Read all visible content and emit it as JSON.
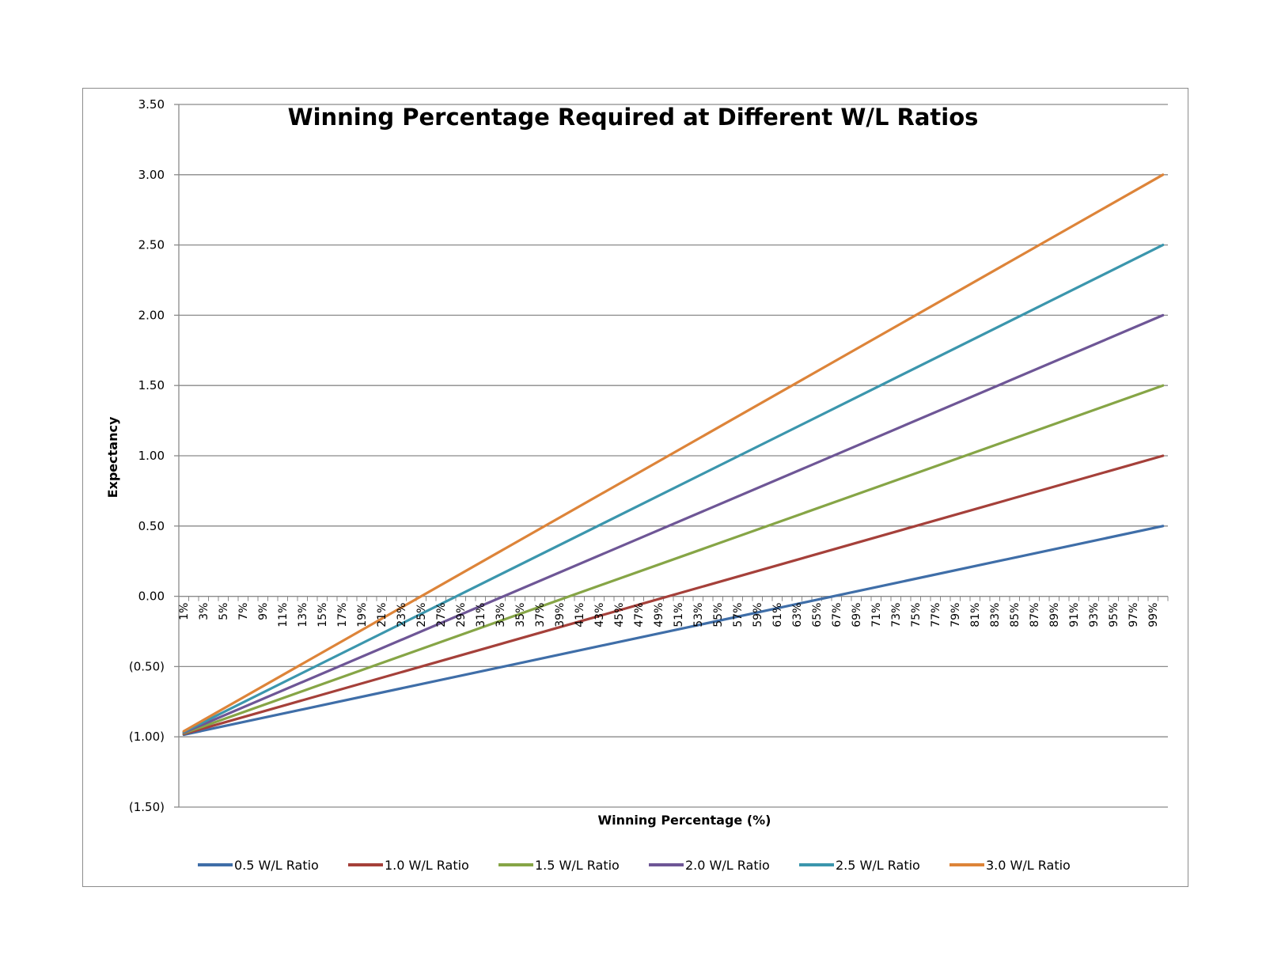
{
  "chart_data": {
    "type": "line",
    "title": "Winning Percentage Required at Different W/L Ratios",
    "xlabel": "Winning Percentage (%)",
    "ylabel": "Expectancy",
    "ylim": [
      -1.5,
      3.5
    ],
    "yticks": [
      3.5,
      3.0,
      2.5,
      2.0,
      1.5,
      1.0,
      0.5,
      0.0,
      -0.5,
      -1.0,
      -1.5
    ],
    "ytick_labels": [
      "3.50",
      "3.00",
      "2.50",
      "2.00",
      "1.50",
      "1.00",
      "0.50",
      "0.00",
      "(0.50)",
      "(1.00)",
      "(1.50)"
    ],
    "x_range": [
      1,
      100
    ],
    "x_tick_labels": [
      "1%",
      "3%",
      "5%",
      "7%",
      "9%",
      "11%",
      "13%",
      "15%",
      "17%",
      "19%",
      "21%",
      "23%",
      "25%",
      "27%",
      "29%",
      "31%",
      "33%",
      "35%",
      "37%",
      "39%",
      "41%",
      "43%",
      "45%",
      "47%",
      "49%",
      "51%",
      "53%",
      "55%",
      "57%",
      "59%",
      "61%",
      "63%",
      "65%",
      "67%",
      "69%",
      "71%",
      "73%",
      "75%",
      "77%",
      "79%",
      "81%",
      "83%",
      "85%",
      "87%",
      "89%",
      "91%",
      "93%",
      "95%",
      "97%",
      "99%"
    ],
    "x_tick_values": [
      1,
      3,
      5,
      7,
      9,
      11,
      13,
      15,
      17,
      19,
      21,
      23,
      25,
      27,
      29,
      31,
      33,
      35,
      37,
      39,
      41,
      43,
      45,
      47,
      49,
      51,
      53,
      55,
      57,
      59,
      61,
      63,
      65,
      67,
      69,
      71,
      73,
      75,
      77,
      79,
      81,
      83,
      85,
      87,
      89,
      91,
      93,
      95,
      97,
      99
    ],
    "grid": true,
    "legend_position": "bottom",
    "series": [
      {
        "name": "0.5 W/L Ratio",
        "color": "#3f6ea8",
        "x": [
          1,
          100
        ],
        "y": [
          -0.985,
          0.5
        ]
      },
      {
        "name": "1.0 W/L Ratio",
        "color": "#a5403a",
        "x": [
          1,
          100
        ],
        "y": [
          -0.98,
          1.0
        ]
      },
      {
        "name": "1.5 W/L Ratio",
        "color": "#86a546",
        "x": [
          1,
          100
        ],
        "y": [
          -0.975,
          1.5
        ]
      },
      {
        "name": "2.0 W/L Ratio",
        "color": "#6e5696",
        "x": [
          1,
          100
        ],
        "y": [
          -0.97,
          2.0
        ]
      },
      {
        "name": "2.5 W/L Ratio",
        "color": "#3b96ad",
        "x": [
          1,
          100
        ],
        "y": [
          -0.965,
          2.5
        ]
      },
      {
        "name": "3.0 W/L Ratio",
        "color": "#dd8439",
        "x": [
          1,
          100
        ],
        "y": [
          -0.96,
          3.0
        ]
      }
    ]
  }
}
